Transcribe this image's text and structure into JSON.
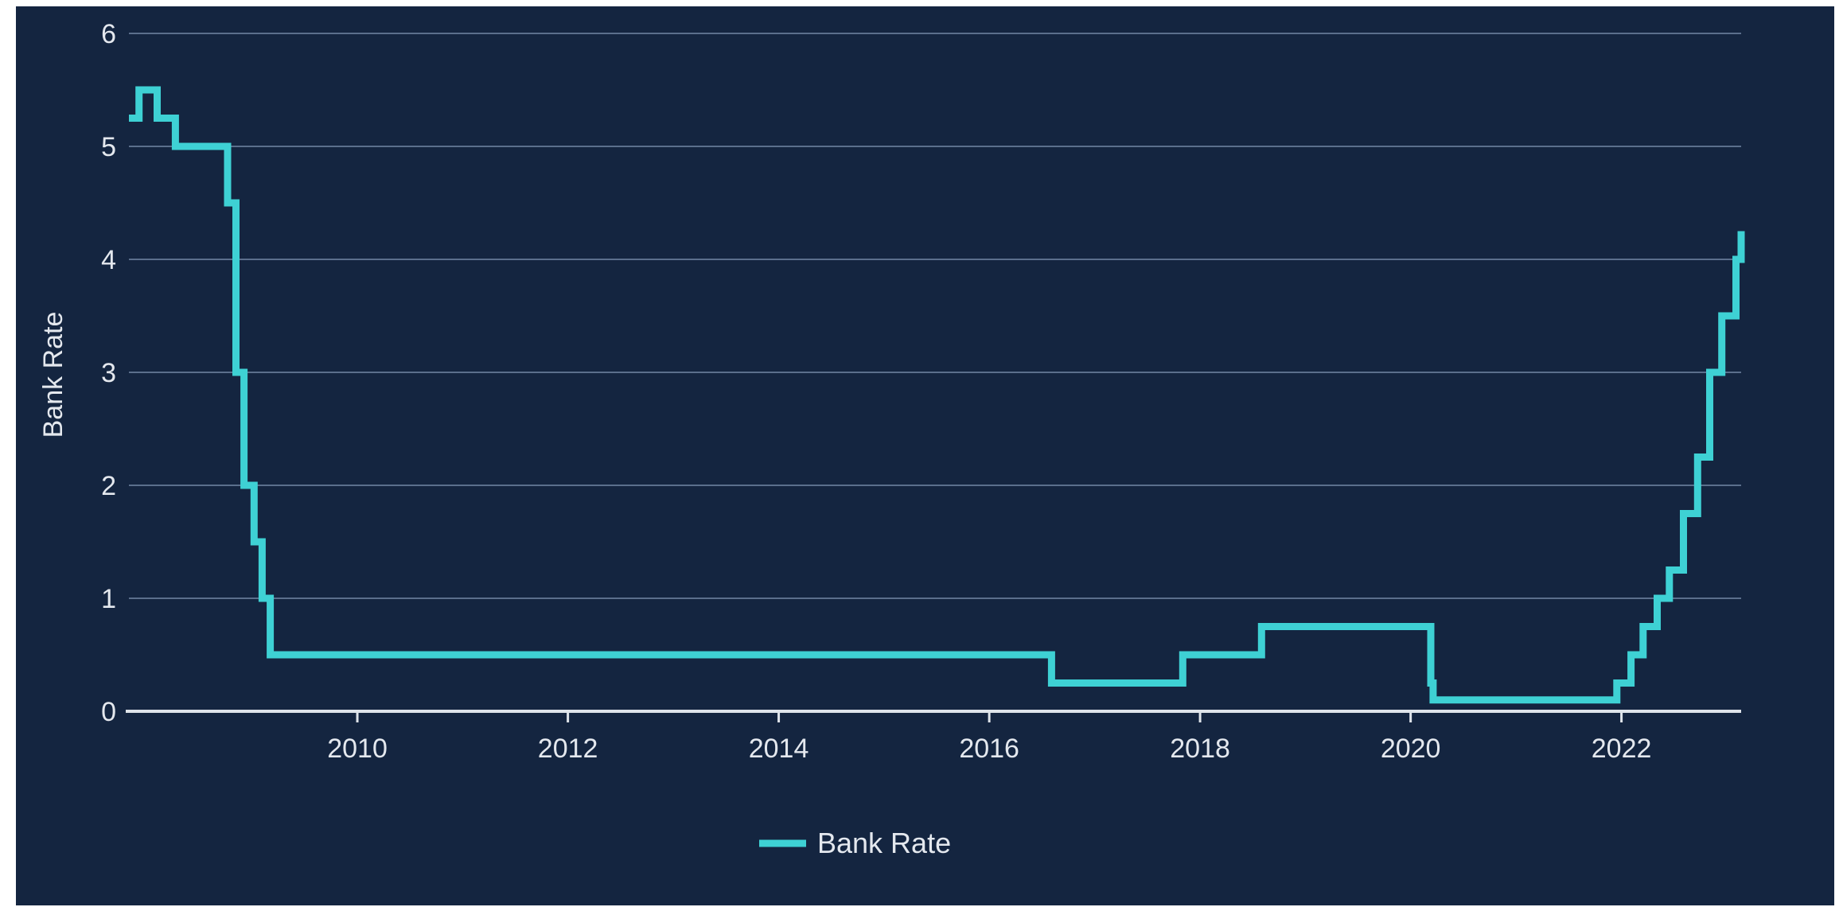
{
  "chart_data": {
    "type": "line",
    "step": true,
    "title": "",
    "xlabel": "",
    "ylabel": "Bank Rate",
    "ylim": [
      0,
      6
    ],
    "xlim": [
      "2007-11-01",
      "2023-02-20"
    ],
    "y_ticks": [
      0,
      1,
      2,
      3,
      4,
      5,
      6
    ],
    "x_ticks": [
      "2010",
      "2012",
      "2014",
      "2016",
      "2018",
      "2020",
      "2022"
    ],
    "grid": true,
    "legend": "bottom-center",
    "series": [
      {
        "name": "Bank Rate",
        "color": "#3ed1d4",
        "points": [
          [
            "2007-11-01",
            5.25
          ],
          [
            "2007-12-06",
            5.5
          ],
          [
            "2008-02-07",
            5.25
          ],
          [
            "2008-04-10",
            5.0
          ],
          [
            "2008-10-08",
            4.5
          ],
          [
            "2008-11-06",
            3.0
          ],
          [
            "2008-12-04",
            2.0
          ],
          [
            "2009-01-08",
            1.5
          ],
          [
            "2009-02-05",
            1.0
          ],
          [
            "2009-03-05",
            0.5
          ],
          [
            "2016-08-04",
            0.25
          ],
          [
            "2017-11-02",
            0.5
          ],
          [
            "2018-08-02",
            0.75
          ],
          [
            "2020-03-11",
            0.25
          ],
          [
            "2020-03-19",
            0.1
          ],
          [
            "2021-12-16",
            0.25
          ],
          [
            "2022-02-03",
            0.5
          ],
          [
            "2022-03-17",
            0.75
          ],
          [
            "2022-05-05",
            1.0
          ],
          [
            "2022-06-16",
            1.25
          ],
          [
            "2022-08-04",
            1.75
          ],
          [
            "2022-09-22",
            2.25
          ],
          [
            "2022-11-03",
            3.0
          ],
          [
            "2022-12-15",
            3.5
          ],
          [
            "2023-02-02",
            4.0
          ],
          [
            "2023-02-20",
            4.25
          ]
        ]
      }
    ]
  },
  "legend": {
    "label": "Bank Rate"
  }
}
